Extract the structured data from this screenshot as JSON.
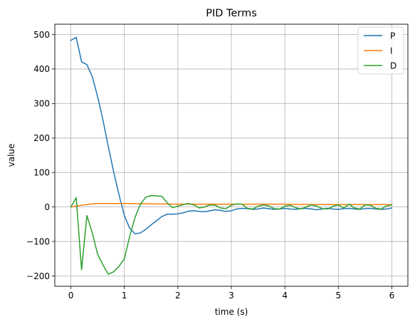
{
  "chart_data": {
    "type": "line",
    "title": "PID Terms",
    "xlabel": "time (s)",
    "ylabel": "value",
    "xlim": [
      -0.3,
      6.3
    ],
    "ylim": [
      -230,
      530
    ],
    "xticks": [
      0,
      1,
      2,
      3,
      4,
      5,
      6
    ],
    "xtick_labels": [
      "0",
      "1",
      "2",
      "3",
      "4",
      "5",
      "6"
    ],
    "yticks": [
      -200,
      -100,
      0,
      100,
      200,
      300,
      400,
      500
    ],
    "ytick_labels": [
      "−200",
      "−100",
      "0",
      "100",
      "200",
      "300",
      "400",
      "500"
    ],
    "grid": true,
    "legend_position": "top-right",
    "series": [
      {
        "name": "P",
        "color": "#1f77b4",
        "x": [
          0,
          0.1,
          0.2,
          0.3,
          0.4,
          0.5,
          0.6,
          0.7,
          0.8,
          0.9,
          1.0,
          1.1,
          1.2,
          1.3,
          1.4,
          1.5,
          1.6,
          1.7,
          1.8,
          1.9,
          2.0,
          2.1,
          2.2,
          2.3,
          2.4,
          2.5,
          2.6,
          2.7,
          2.8,
          2.9,
          3.0,
          3.1,
          3.2,
          3.3,
          3.4,
          3.5,
          3.6,
          3.7,
          3.8,
          3.9,
          4.0,
          4.1,
          4.2,
          4.3,
          4.4,
          4.5,
          4.6,
          4.7,
          4.8,
          4.9,
          5.0,
          5.1,
          5.2,
          5.3,
          5.4,
          5.5,
          5.6,
          5.7,
          5.8,
          5.9,
          6.0
        ],
        "y": [
          483,
          492,
          421,
          413,
          378,
          320,
          252,
          175,
          102,
          35,
          -25,
          -62,
          -78,
          -75,
          -65,
          -52,
          -40,
          -28,
          -21,
          -21,
          -20,
          -17,
          -12,
          -11,
          -13,
          -14,
          -11,
          -8,
          -10,
          -13,
          -11,
          -6,
          -4,
          -5,
          -7,
          -6,
          -3,
          -5,
          -7,
          -6,
          -4,
          -6,
          -7,
          -5,
          -4,
          -6,
          -8,
          -6,
          -4,
          -6,
          -7,
          -5,
          -4,
          -6,
          -7,
          -5,
          -4,
          -6,
          -7,
          -6,
          -3
        ]
      },
      {
        "name": "I",
        "color": "#ff7f0e",
        "x": [
          0,
          0.1,
          0.2,
          0.3,
          0.4,
          0.5,
          0.6,
          0.7,
          0.8,
          0.9,
          1.0,
          1.5,
          2.0,
          2.5,
          3.0,
          3.5,
          4.0,
          4.5,
          5.0,
          5.5,
          6.0
        ],
        "y": [
          0,
          2,
          5,
          7,
          9,
          10,
          10,
          10,
          10,
          10,
          10,
          9,
          8,
          8,
          8,
          8,
          8,
          7,
          7,
          7,
          7
        ]
      },
      {
        "name": "D",
        "color": "#2ca02c",
        "x": [
          0,
          0.1,
          0.2,
          0.3,
          0.4,
          0.5,
          0.6,
          0.7,
          0.8,
          0.9,
          1.0,
          1.1,
          1.2,
          1.3,
          1.4,
          1.5,
          1.6,
          1.7,
          1.8,
          1.9,
          2.0,
          2.1,
          2.2,
          2.3,
          2.4,
          2.5,
          2.6,
          2.7,
          2.8,
          2.9,
          3.0,
          3.1,
          3.2,
          3.3,
          3.4,
          3.5,
          3.6,
          3.7,
          3.8,
          3.9,
          4.0,
          4.1,
          4.2,
          4.3,
          4.4,
          4.5,
          4.6,
          4.7,
          4.8,
          4.9,
          5.0,
          5.1,
          5.2,
          5.3,
          5.4,
          5.5,
          5.6,
          5.7,
          5.8,
          5.9,
          6.0
        ],
        "y": [
          0,
          27,
          -182,
          -25,
          -75,
          -137,
          -168,
          -195,
          -188,
          -172,
          -150,
          -85,
          -30,
          8,
          28,
          33,
          32,
          31,
          12,
          -2,
          2,
          7,
          10,
          6,
          -3,
          0,
          6,
          5,
          -3,
          -5,
          5,
          9,
          8,
          -4,
          -6,
          2,
          6,
          3,
          -5,
          -6,
          2,
          5,
          -2,
          -6,
          0,
          6,
          2,
          -5,
          -6,
          2,
          6,
          -3,
          8,
          -3,
          -6,
          6,
          5,
          -4,
          -6,
          3,
          6
        ]
      }
    ]
  }
}
